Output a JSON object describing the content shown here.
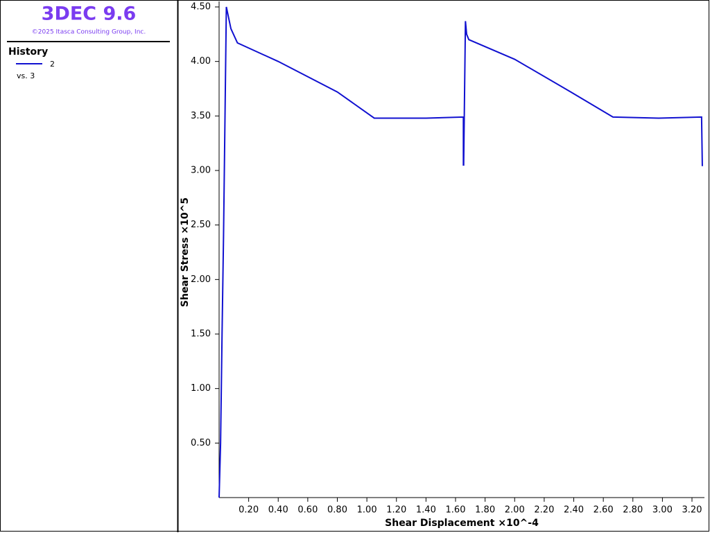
{
  "sidebar": {
    "app_title": "3DEC 9.6",
    "copyright": "©2025 Itasca Consulting Group, Inc.",
    "section": "History",
    "legend_vs": "vs. 3"
  },
  "chart_data": {
    "type": "line",
    "x_label": "Shear Displacement ×10^-4",
    "y_label": "Shear Stress ×10^5",
    "x": [
      0,
      0.01,
      0.02,
      0.03,
      0.04,
      0.049,
      0.08,
      0.124,
      0.4,
      0.8,
      1.05,
      1.4,
      1.653,
      1.653,
      1.655,
      1.667,
      1.675,
      1.69,
      2.0,
      2.38,
      2.665,
      2.975,
      3.265,
      3.27
    ],
    "series": [
      {
        "name": "2",
        "color": "#1010d0",
        "values": [
          0,
          0.5,
          1.5,
          2.4,
          3.5,
          4.5,
          4.3,
          4.17,
          4.0,
          3.72,
          3.48,
          3.48,
          3.49,
          3.05,
          3.05,
          4.37,
          4.25,
          4.2,
          4.02,
          3.72,
          3.49,
          3.48,
          3.49,
          3.04
        ]
      }
    ],
    "xlim": [
      0,
      3.275
    ],
    "ylim": [
      0,
      4.5
    ],
    "xticks": [
      {
        "value": 0.2,
        "label": "0.20"
      },
      {
        "value": 0.4,
        "label": "0.40"
      },
      {
        "value": 0.6,
        "label": "0.60"
      },
      {
        "value": 0.8,
        "label": "0.80"
      },
      {
        "value": 1.0,
        "label": "1.00"
      },
      {
        "value": 1.2,
        "label": "1.20"
      },
      {
        "value": 1.4,
        "label": "1.40"
      },
      {
        "value": 1.6,
        "label": "1.60"
      },
      {
        "value": 1.8,
        "label": "1.80"
      },
      {
        "value": 2.0,
        "label": "2.00"
      },
      {
        "value": 2.2,
        "label": "2.20"
      },
      {
        "value": 2.4,
        "label": "2.40"
      },
      {
        "value": 2.6,
        "label": "2.60"
      },
      {
        "value": 2.8,
        "label": "2.80"
      },
      {
        "value": 3.0,
        "label": "3.00"
      },
      {
        "value": 3.2,
        "label": "3.20"
      }
    ],
    "yticks": [
      {
        "value": 0.5,
        "label": "0.50"
      },
      {
        "value": 1.0,
        "label": "1.00"
      },
      {
        "value": 1.5,
        "label": "1.50"
      },
      {
        "value": 2.0,
        "label": "2.00"
      },
      {
        "value": 2.5,
        "label": "2.50"
      },
      {
        "value": 3.0,
        "label": "3.00"
      },
      {
        "value": 3.5,
        "label": "3.50"
      },
      {
        "value": 4.0,
        "label": "4.00"
      },
      {
        "value": 4.5,
        "label": "4.50"
      }
    ],
    "grid": false
  }
}
